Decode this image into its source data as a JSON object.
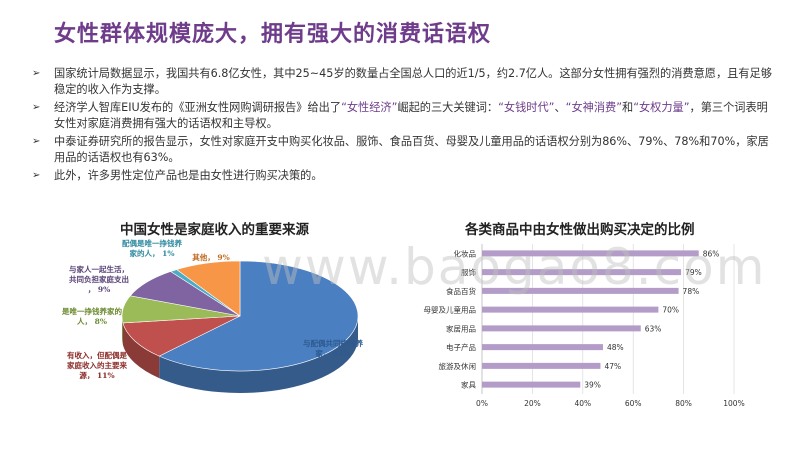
{
  "title": "女性群体规模庞大，拥有强大的消费话语权",
  "bullets": [
    {
      "pre": "国家统计局数据显示，我国共有6.8亿女性，其中25~45岁的数量占全国总人口的近1/5，约2.7亿人。这部分女性拥有强烈的消费意愿，且有足够稳定的收入作为支撑。"
    },
    {
      "pre": "经济学人智库EIU发布的《亚洲女性网购调研报告》给出了",
      "hl1": "“女性经济”",
      "mid1": "崛起的三大关键词：",
      "hl2": "“女钱时代”",
      "mid2": "、",
      "hl3": "“女神消费”",
      "mid3": "和",
      "hl4": "“女权力量”",
      "post": "，第三个词表明女性对家庭消费拥有强大的话语权和主导权。"
    },
    {
      "pre": "中泰证券研究所的报告显示，女性对家庭开支中购买化妆品、服饰、食品百货、母婴及儿童用品的话语权分别为86%、79%、78%和70%，家居用品的话语权也有63%。"
    },
    {
      "pre": "此外，许多男性定位产品也是由女性进行购买决策的。"
    }
  ],
  "watermark": "www.baogao8.com",
  "chart_data": [
    {
      "type": "pie",
      "title": "中国女性是家庭收入的重要来源",
      "slices": [
        {
          "label": "与配偶共同挣钱养家，",
          "pct": "62%",
          "value": 62,
          "color": "#4a7fc1"
        },
        {
          "label": "有收入，但配偶是家庭收入的主要来源，",
          "pct": "11%",
          "value": 11,
          "color": "#c0504d"
        },
        {
          "label": "是唯一挣钱养家的人，",
          "pct": "8%",
          "value": 8,
          "color": "#9bbb59"
        },
        {
          "label": "与家人一起生活，共同负担家庭支出，",
          "pct": "9%",
          "value": 9,
          "color": "#8064a2"
        },
        {
          "label": "配偶是唯一挣钱养家的人，",
          "pct": "1%",
          "value": 1,
          "color": "#4bacc6"
        },
        {
          "label": "其他，",
          "pct": "9%",
          "value": 9,
          "color": "#f79646"
        }
      ]
    },
    {
      "type": "bar",
      "orientation": "horizontal",
      "title": "各类商品中由女性做出购买决定的比例",
      "categories": [
        "化妆品",
        "服饰",
        "食品百货",
        "母婴及儿童用品",
        "家居用品",
        "电子产品",
        "旅游及休闲",
        "家具"
      ],
      "values": [
        86,
        79,
        78,
        70,
        63,
        48,
        47,
        39
      ],
      "value_labels": [
        "86%",
        "79%",
        "78%",
        "70%",
        "63%",
        "48%",
        "47%",
        "39%"
      ],
      "xlim": [
        0,
        100
      ],
      "xticks": [
        "0%",
        "20%",
        "40%",
        "60%",
        "80%",
        "100%"
      ],
      "bar_color": "#b39cc7",
      "grid": true
    }
  ]
}
